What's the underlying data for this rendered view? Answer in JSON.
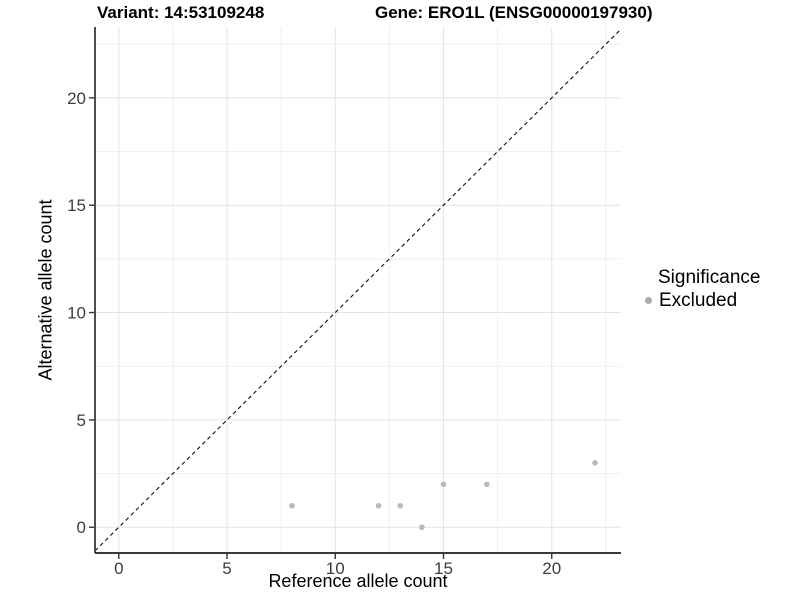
{
  "chart_data": {
    "type": "scatter",
    "title_left": "Variant: 14:53109248",
    "title_right": "Gene: ERO1L (ENSG00000197930)",
    "xlabel": "Reference allele count",
    "ylabel": "Alternative allele count",
    "xlim": [
      -1.1,
      23.2
    ],
    "ylim": [
      -1.2,
      23.3
    ],
    "x_major_ticks": [
      0,
      5,
      10,
      15,
      20
    ],
    "y_major_ticks": [
      0,
      5,
      10,
      15,
      20
    ],
    "x_minor_ticks": [
      2.5,
      7.5,
      12.5,
      17.5,
      22.5
    ],
    "y_minor_ticks": [
      2.5,
      7.5,
      12.5,
      17.5,
      22.5
    ],
    "grid": {
      "major_color": "#e4e4e4",
      "minor_color": "#efefef"
    },
    "axis_color": "#3a3a3a",
    "tick_label_color": "#3d3d3d",
    "identity_line": {
      "slope": 1,
      "intercept": 0,
      "style": "dashed",
      "color": "#111111"
    },
    "series": [
      {
        "name": "Excluded",
        "color": "#b9b9b9",
        "points": [
          [
            8,
            1
          ],
          [
            12,
            1
          ],
          [
            13,
            1
          ],
          [
            14,
            0
          ],
          [
            15,
            2
          ],
          [
            17,
            2
          ],
          [
            22,
            3
          ]
        ]
      }
    ],
    "legend": {
      "title": "Significance",
      "position": "right",
      "items": [
        {
          "label": "Excluded",
          "color": "#a9a9a9"
        }
      ]
    }
  }
}
